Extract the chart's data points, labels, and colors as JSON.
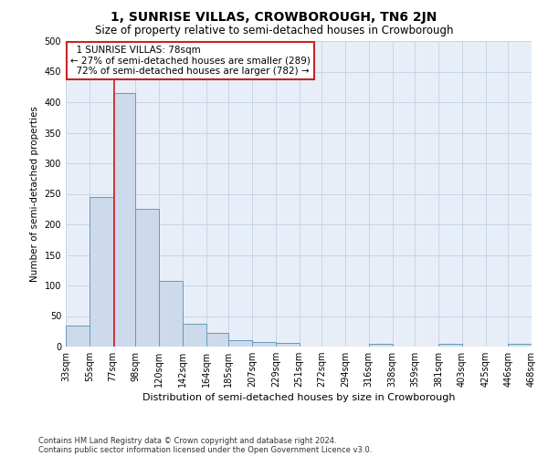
{
  "title": "1, SUNRISE VILLAS, CROWBOROUGH, TN6 2JN",
  "subtitle": "Size of property relative to semi-detached houses in Crowborough",
  "xlabel": "Distribution of semi-detached houses by size in Crowborough",
  "ylabel": "Number of semi-detached properties",
  "footer1": "Contains HM Land Registry data © Crown copyright and database right 2024.",
  "footer2": "Contains public sector information licensed under the Open Government Licence v3.0.",
  "bin_edges": [
    33,
    55,
    77,
    98,
    120,
    142,
    164,
    185,
    207,
    229,
    251,
    272,
    294,
    316,
    338,
    359,
    381,
    403,
    425,
    446,
    468
  ],
  "bar_heights": [
    35,
    245,
    415,
    225,
    108,
    38,
    23,
    11,
    8,
    6,
    0,
    0,
    0,
    5,
    0,
    0,
    5,
    0,
    0,
    5
  ],
  "bar_color": "#cddaeb",
  "bar_edgecolor": "#6699bb",
  "vline_x": 78,
  "vline_color": "#cc2222",
  "annotation_text": "  1 SUNRISE VILLAS: 78sqm  \n← 27% of semi-detached houses are smaller (289)\n  72% of semi-detached houses are larger (782) →",
  "annotation_box_edgecolor": "#cc2222",
  "annotation_box_facecolor": "#ffffff",
  "ylim": [
    0,
    500
  ],
  "yticks": [
    0,
    50,
    100,
    150,
    200,
    250,
    300,
    350,
    400,
    450,
    500
  ],
  "ax_facecolor": "#e8eef7",
  "background_color": "#ffffff",
  "grid_color": "#c8d4e4",
  "title_fontsize": 10,
  "subtitle_fontsize": 8.5,
  "xlabel_fontsize": 8,
  "ylabel_fontsize": 7.5,
  "tick_fontsize": 7,
  "ann_fontsize": 7.5,
  "footer_fontsize": 6
}
